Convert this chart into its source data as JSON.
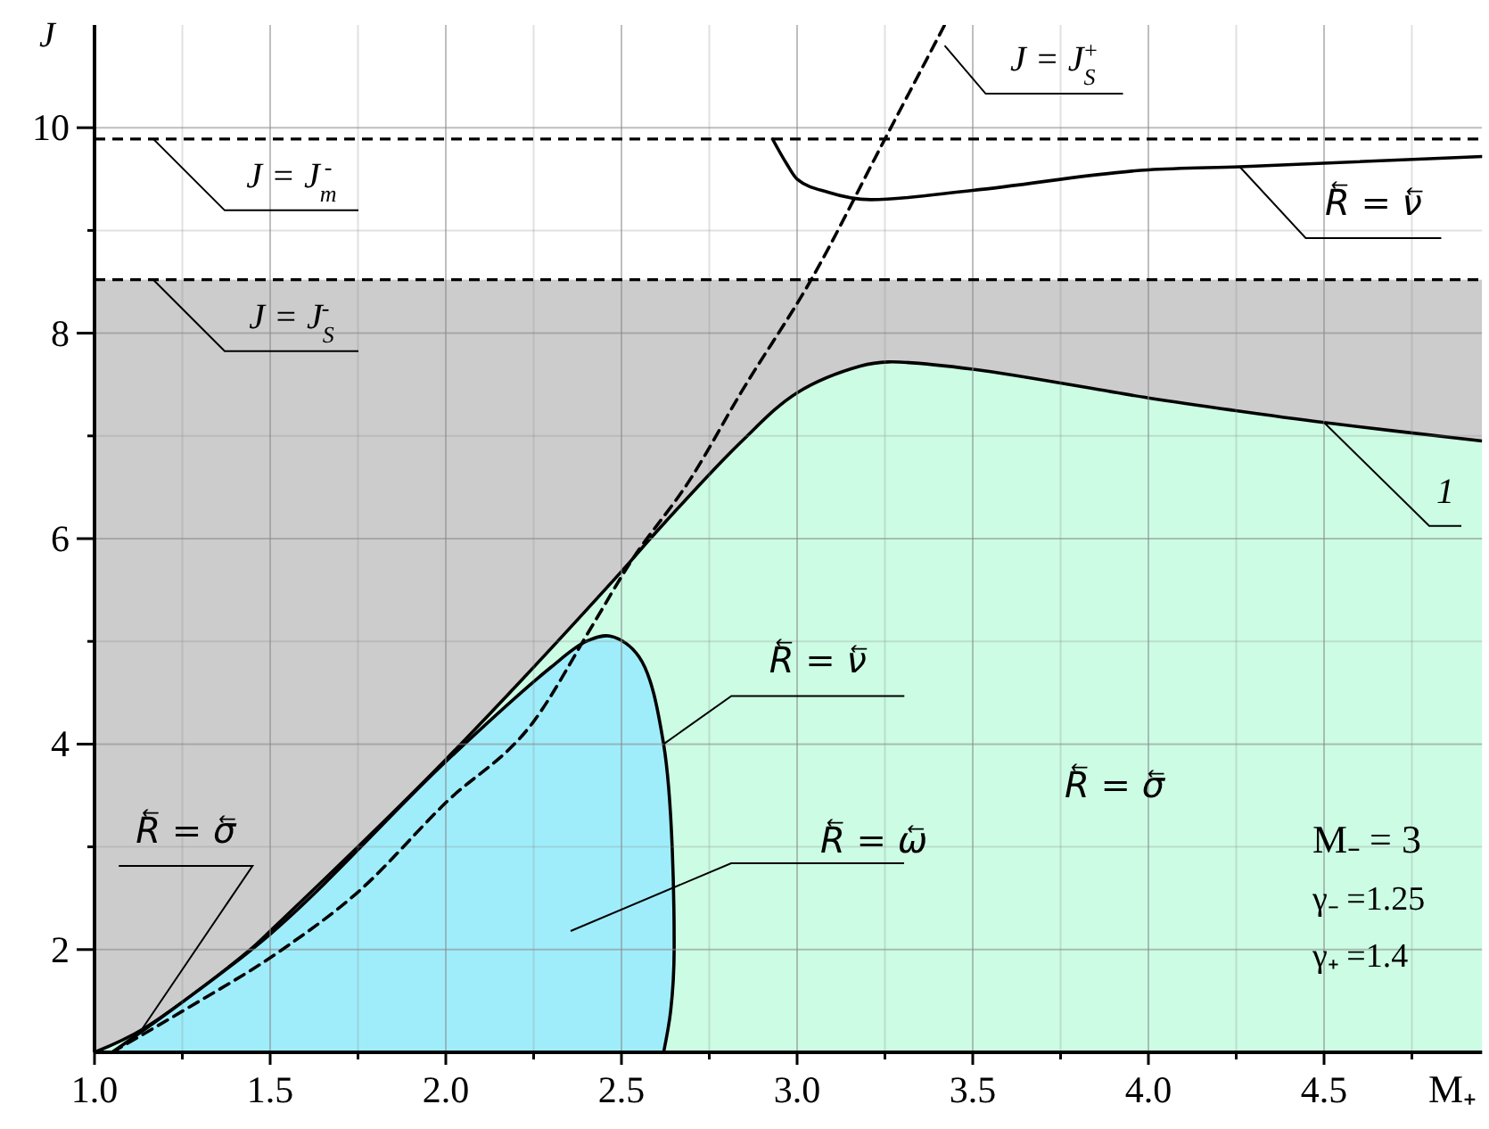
{
  "chart_data": {
    "type": "line",
    "xlabel": "M₊",
    "ylabel": "J",
    "xlim": [
      1,
      4.95
    ],
    "ylim": [
      1,
      11
    ],
    "xticks": [
      {
        "value": 1,
        "label": "1.0"
      },
      {
        "value": 1.25,
        "label": null
      },
      {
        "value": 1.5,
        "label": "1.5"
      },
      {
        "value": 1.75,
        "label": null
      },
      {
        "value": 2,
        "label": "2.0"
      },
      {
        "value": 2.25,
        "label": null
      },
      {
        "value": 2.5,
        "label": "2.5"
      },
      {
        "value": 2.75,
        "label": null
      },
      {
        "value": 3,
        "label": "3.0"
      },
      {
        "value": 3.25,
        "label": null
      },
      {
        "value": 3.5,
        "label": "3.5"
      },
      {
        "value": 3.75,
        "label": null
      },
      {
        "value": 4,
        "label": "4.0"
      },
      {
        "value": 4.25,
        "label": null
      },
      {
        "value": 4.5,
        "label": "4.5"
      },
      {
        "value": 4.75,
        "label": null
      }
    ],
    "yticks": [
      2,
      {
        "value": 3,
        "label": null
      },
      4,
      {
        "value": 5,
        "label": null
      },
      6,
      {
        "value": 7,
        "label": null
      },
      8,
      {
        "value": 9,
        "label": null
      },
      10
    ],
    "grid": true,
    "bands": [
      {
        "axis": "y",
        "from": 1,
        "to": 8.52,
        "color": "#cccccc"
      }
    ],
    "ref_lines": [
      {
        "axis": "y",
        "value": 9.89,
        "label": "J = J$_{m}$$^{-}$",
        "line_style": "dashed",
        "color": "#000000"
      },
      {
        "axis": "y",
        "value": 8.52,
        "label": "J = J$_{S}$$^{-}$",
        "line_style": "dashed",
        "color": "#000000"
      }
    ],
    "series": [
      {
        "type": "area",
        "color": "#ccfce4",
        "x": [
          1.0,
          1.14,
          1.44,
          1.5,
          2.0,
          2.5,
          2.59,
          2.84,
          3.0,
          3.18,
          3.26,
          3.5,
          4.0,
          4.24,
          4.5,
          4.95
        ],
        "values": [
          1.0,
          1.23,
          1.99,
          2.18,
          3.85,
          5.68,
          6.03,
          6.94,
          7.42,
          7.68,
          7.72,
          7.65,
          7.37,
          7.25,
          7.13,
          6.95
        ]
      },
      {
        "type": "area",
        "color": "#9fedfb",
        "x": [
          1.05,
          1.5,
          2.0,
          2.3,
          2.4,
          2.47,
          2.55,
          2.62,
          2.65,
          2.64,
          2.62
        ],
        "values": [
          1.0,
          2.15,
          3.83,
          4.75,
          5.0,
          5.05,
          4.85,
          4.0,
          2.0,
          1.4,
          1.0
        ]
      },
      {
        "color": "#000000",
        "line_style": "dashed",
        "x": [
          1.05,
          1.25,
          1.53,
          1.75,
          2.0,
          2.25,
          2.42,
          2.52,
          2.7,
          2.84,
          3.04,
          3.25,
          3.42
        ],
        "values": [
          1.0,
          1.4,
          1.99,
          2.56,
          3.43,
          4.22,
          5.17,
          5.74,
          6.6,
          7.42,
          8.52,
          9.89,
          11.0
        ]
      },
      {
        "color": "#000000",
        "line_style": "solid",
        "x": [
          2.93,
          2.97,
          3.0,
          3.09,
          3.21,
          3.5,
          4.0,
          4.26,
          4.95
        ],
        "values": [
          9.89,
          9.65,
          9.5,
          9.37,
          9.3,
          9.39,
          9.59,
          9.62,
          9.72
        ]
      }
    ],
    "annotations": [
      {
        "text": "J = J$_{S}$$^{+}$",
        "x": 3.42,
        "y": 10.8
      },
      {
        "text": "R⃖ = ν⃖",
        "x": 4.26,
        "y": 9.62
      },
      {
        "text": "1",
        "x": 4.5,
        "y": 7.13
      },
      {
        "text": "R⃖ = ν⃖",
        "x": 2.62,
        "y": 4.0
      },
      {
        "text": "R⃖ = σ⃖",
        "x": 1.13,
        "y": 1.2
      },
      "R⃖ = ω⃖",
      "R⃖ = σ⃖",
      "M₋ = 3",
      "γ₋ =1.25",
      "γ₊ =1.4"
    ]
  }
}
